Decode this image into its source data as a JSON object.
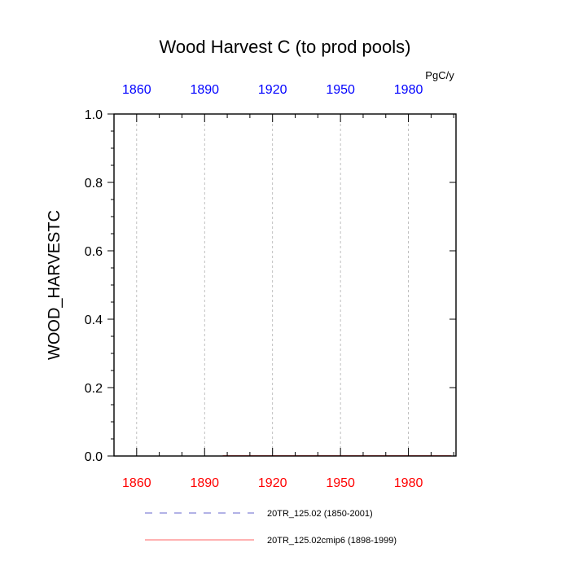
{
  "chart_data": {
    "type": "line",
    "title": "Wood Harvest C (to prod pools)",
    "ylabel": "WOOD_HARVESTC",
    "units": "PgC/y",
    "xlim": [
      1850,
      2001
    ],
    "ylim": [
      0,
      1
    ],
    "x_ticks": [
      1860,
      1890,
      1920,
      1950,
      1980
    ],
    "y_ticks": [
      "0.0",
      "0.2",
      "0.4",
      "0.6",
      "0.8",
      "1.0"
    ],
    "y_tick_values": [
      0,
      0.2,
      0.4,
      0.6,
      0.8,
      1.0
    ],
    "grid": "vertical-dashed",
    "top_axis_color": "#0000ff",
    "bottom_axis_color": "#ff0000",
    "series": [
      {
        "name": "20TR_125.02 (1850-2001)",
        "color": "#6666cc",
        "dash": "dashed",
        "x": [
          1850,
          2001
        ],
        "y": [
          0,
          0
        ]
      },
      {
        "name": "20TR_125.02cmip6 (1898-1999)",
        "color": "#ff6666",
        "dash": "solid",
        "x": [
          1898,
          1999
        ],
        "y": [
          0,
          0
        ]
      }
    ]
  }
}
